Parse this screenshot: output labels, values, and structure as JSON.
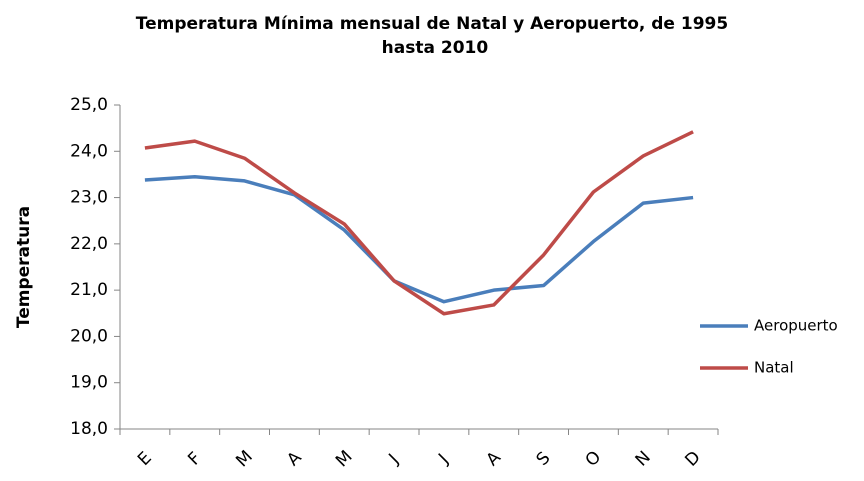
{
  "chart_data": {
    "type": "line",
    "title": "Temperatura Mínima mensual de Natal y Aeropuerto, de 1995 hasta 2010",
    "y_label": "Temperatura",
    "categories": [
      "E",
      "F",
      "M",
      "A",
      "M",
      "J",
      "J",
      "A",
      "S",
      "O",
      "N",
      "D"
    ],
    "series": [
      {
        "name": "Aeropuerto",
        "color": "#4a7ebb",
        "values": [
          23.38,
          23.45,
          23.36,
          23.06,
          22.3,
          21.2,
          20.75,
          21.0,
          21.1,
          22.05,
          22.88,
          23.0
        ]
      },
      {
        "name": "Natal",
        "color": "#be4b48",
        "values": [
          24.07,
          24.22,
          23.85,
          23.1,
          22.43,
          21.2,
          20.49,
          20.68,
          21.76,
          23.12,
          23.9,
          24.42
        ]
      }
    ],
    "ylim": [
      18,
      25
    ],
    "yticks": [
      {
        "value": 18,
        "label": "18,0"
      },
      {
        "value": 19,
        "label": "19,0"
      },
      {
        "value": 20,
        "label": "20,0"
      },
      {
        "value": 21,
        "label": "21,0"
      },
      {
        "value": 22,
        "label": "22,0"
      },
      {
        "value": 23,
        "label": "23,0"
      },
      {
        "value": 24,
        "label": "24,0"
      },
      {
        "value": 25,
        "label": "25,0"
      }
    ],
    "grid": false,
    "legend": "right"
  }
}
